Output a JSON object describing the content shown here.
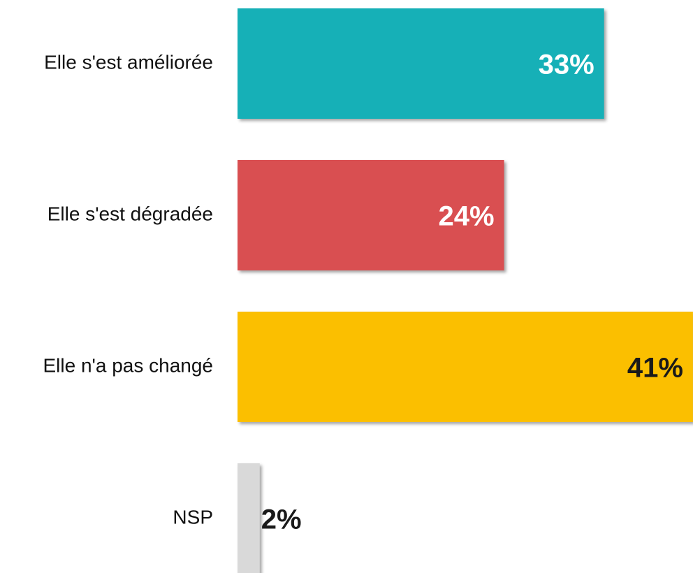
{
  "chart_data": {
    "type": "hbar",
    "categories": [
      "Elle s'est améliorée",
      "Elle s'est dégradée",
      "Elle n'a pas changé",
      "NSP"
    ],
    "values": [
      33,
      24,
      41,
      2
    ],
    "value_labels": [
      "33%",
      "24%",
      "41%",
      "2%"
    ],
    "colors": [
      "#16b0b7",
      "#d94f51",
      "#fbbf00",
      "#d9d9d9"
    ],
    "label_colors": [
      "#ffffff",
      "#ffffff",
      "#1a1a1a",
      "#1a1a1a"
    ]
  }
}
